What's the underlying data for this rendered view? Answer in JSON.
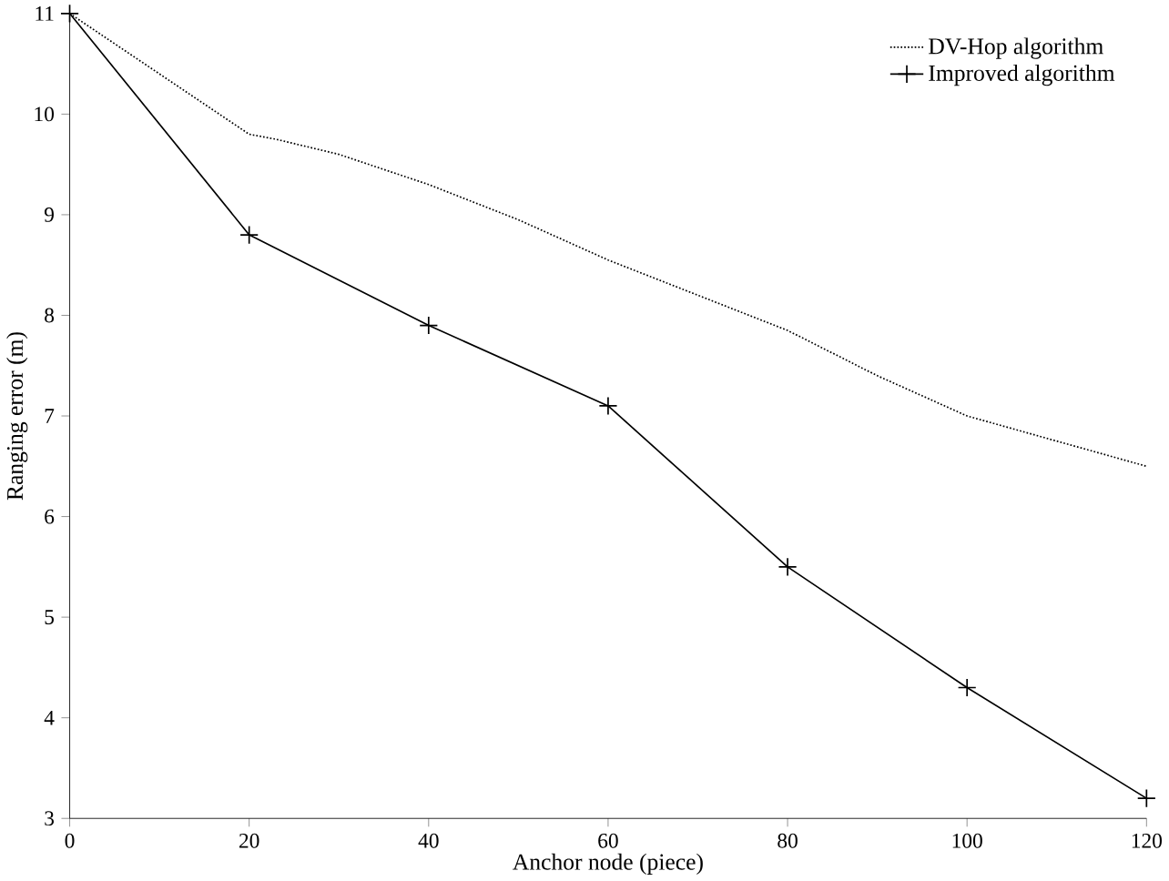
{
  "chart_data": {
    "type": "line",
    "xlabel": "Anchor node (piece)",
    "ylabel": "Ranging error (m)",
    "xlim": [
      0,
      120
    ],
    "ylim": [
      3,
      11
    ],
    "xticks": [
      0,
      20,
      40,
      60,
      80,
      100,
      120
    ],
    "yticks": [
      3,
      4,
      5,
      6,
      7,
      8,
      9,
      10,
      11
    ],
    "grid": false,
    "legend": "top right",
    "series": [
      {
        "name": "DV-Hop algorithm",
        "color": "#000000",
        "line_style": "dotted",
        "marker": "none",
        "x": [
          0,
          10,
          20,
          23,
          30,
          40,
          50,
          60,
          70,
          80,
          90,
          100,
          110,
          120
        ],
        "values": [
          11,
          10.4,
          9.8,
          9.75,
          9.6,
          9.3,
          8.95,
          8.55,
          8.2,
          7.85,
          7.4,
          7.0,
          6.75,
          6.5
        ]
      },
      {
        "name": "Improved algorithm",
        "color": "#000000",
        "line_style": "solid",
        "marker": "cross",
        "x": [
          0,
          20,
          40,
          60,
          80,
          100,
          120
        ],
        "values": [
          11,
          8.8,
          7.9,
          7.1,
          5.5,
          4.3,
          3.2
        ]
      }
    ]
  }
}
